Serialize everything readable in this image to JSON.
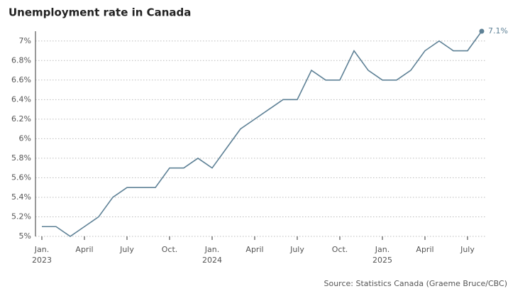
{
  "chart_data": {
    "type": "line",
    "title": "Unemployment rate in Canada",
    "source": "Source: Statistics Canada (Graeme Bruce/CBC)",
    "categories": [
      "Jan.\n2023",
      null,
      null,
      "April",
      null,
      null,
      "July",
      null,
      null,
      "Oct.",
      null,
      null,
      "Jan.\n2024",
      null,
      null,
      "April",
      null,
      null,
      "July",
      null,
      null,
      "Oct.",
      null,
      null,
      "Jan.\n2025",
      null,
      null,
      "April",
      null,
      null,
      "July",
      null
    ],
    "series": [
      {
        "name": "Unemployment rate",
        "color": "#5e8196",
        "values": [
          5.1,
          5.1,
          5.0,
          5.1,
          5.2,
          5.4,
          5.5,
          5.5,
          5.5,
          5.7,
          5.7,
          5.8,
          5.7,
          5.9,
          6.1,
          6.2,
          6.3,
          6.4,
          6.4,
          6.7,
          6.6,
          6.6,
          6.9,
          6.7,
          6.6,
          6.6,
          6.7,
          6.9,
          7.0,
          6.9,
          6.9,
          7.1
        ],
        "value_labels": [
          null,
          null,
          null,
          null,
          null,
          null,
          null,
          null,
          null,
          null,
          null,
          null,
          null,
          null,
          null,
          null,
          null,
          null,
          null,
          null,
          null,
          null,
          null,
          null,
          null,
          null,
          null,
          null,
          null,
          null,
          null,
          "7.1%"
        ]
      }
    ],
    "ylim": [
      5,
      7.1
    ],
    "yticks": [
      {
        "value": 5,
        "label": "5%"
      },
      {
        "value": 5.2,
        "label": "5.2%"
      },
      {
        "value": 5.4,
        "label": "5.4%"
      },
      {
        "value": 5.6,
        "label": "5.6%"
      },
      {
        "value": 5.8,
        "label": "5.8%"
      },
      {
        "value": 6,
        "label": "6%"
      },
      {
        "value": 6.2,
        "label": "6.2%"
      },
      {
        "value": 6.4,
        "label": "6.4%"
      },
      {
        "value": 6.6,
        "label": "6.6%"
      },
      {
        "value": 6.8,
        "label": "6.8%"
      },
      {
        "value": 7,
        "label": "7%"
      }
    ],
    "grid": true
  }
}
